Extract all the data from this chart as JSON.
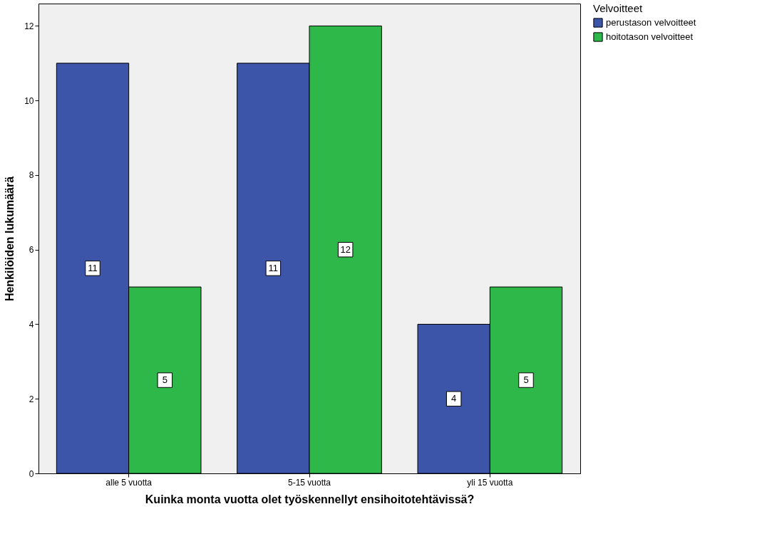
{
  "chart_data": {
    "type": "bar",
    "xlabel": "Kuinka monta vuotta olet työskennellyt ensihoitotehtävissä?",
    "ylabel": "Henkilöiden lukumäärä",
    "legend_title": "Velvoitteet",
    "categories": [
      "alle 5 vuotta",
      "5-15 vuotta",
      "yli 15 vuotta"
    ],
    "series": [
      {
        "name": "perustason velvoitteet",
        "color": "#3d55a8",
        "values": [
          11,
          11,
          4
        ]
      },
      {
        "name": "hoitotason velvoitteet",
        "color": "#2eb84a",
        "values": [
          5,
          12,
          5
        ]
      }
    ],
    "ylim": [
      0,
      12.6
    ],
    "yticks": [
      0,
      2,
      4,
      6,
      8,
      10,
      12
    ],
    "grid": false,
    "legend": "top right",
    "data_labels": true
  }
}
